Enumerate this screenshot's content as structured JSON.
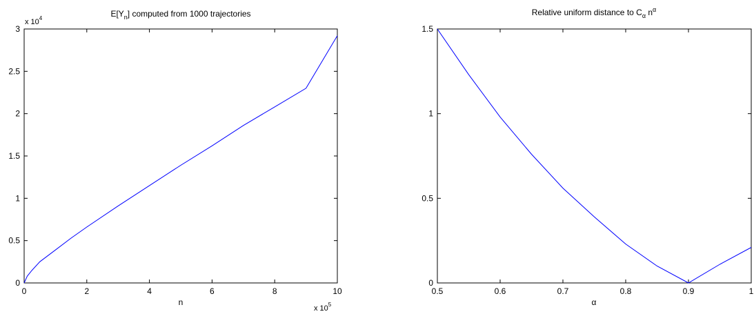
{
  "chart_data": [
    {
      "type": "line",
      "title": {
        "base": "E[Y",
        "subscript": "n",
        "rest": "] computed from 1000 trajectories"
      },
      "xlabel": "n",
      "ylabel": "",
      "x_exponent": {
        "prefix": "x 10",
        "power": "5"
      },
      "y_exponent": {
        "prefix": "x 10",
        "power": "4"
      },
      "xlim": [
        0,
        1000000
      ],
      "ylim": [
        0,
        30000
      ],
      "xticks": [
        0,
        200000,
        400000,
        600000,
        800000,
        1000000
      ],
      "xtick_labels": [
        "0",
        "2",
        "4",
        "6",
        "8",
        "10"
      ],
      "yticks": [
        0,
        5000,
        10000,
        15000,
        20000,
        25000,
        30000
      ],
      "ytick_labels": [
        "0",
        "0.5",
        "1",
        "1.5",
        "2",
        "2.5",
        "3"
      ],
      "grid": false,
      "color": "#0000ff",
      "series": [
        {
          "x": [
            0,
            10000,
            25000,
            50000,
            100000,
            150000,
            200000,
            300000,
            400000,
            500000,
            600000,
            700000,
            800000,
            900000,
            1000000
          ],
          "y": [
            0,
            800,
            1500,
            2500,
            3900,
            5300,
            6600,
            9100,
            11500,
            13900,
            16200,
            18600,
            20800,
            23000,
            29200
          ]
        }
      ]
    },
    {
      "type": "line",
      "title": {
        "base": "Relative uniform distance to C",
        "subscript": "α",
        "rest": " n",
        "superscript": "α"
      },
      "xlabel": "α",
      "ylabel": "",
      "xlim": [
        0.5,
        1.0
      ],
      "ylim": [
        0,
        1.5
      ],
      "xticks": [
        0.5,
        0.6,
        0.7,
        0.8,
        0.9,
        1.0
      ],
      "xtick_labels": [
        "0.5",
        "0.6",
        "0.7",
        "0.8",
        "0.9",
        "1"
      ],
      "yticks": [
        0,
        0.5,
        1.0,
        1.5
      ],
      "ytick_labels": [
        "0",
        "0.5",
        "1",
        "1.5"
      ],
      "grid": false,
      "color": "#0000ff",
      "series": [
        {
          "x": [
            0.5,
            0.55,
            0.6,
            0.65,
            0.7,
            0.75,
            0.8,
            0.85,
            0.9,
            0.95,
            1.0
          ],
          "y": [
            1.5,
            1.23,
            0.98,
            0.76,
            0.56,
            0.39,
            0.23,
            0.1,
            0.0,
            0.11,
            0.21
          ]
        }
      ]
    }
  ]
}
